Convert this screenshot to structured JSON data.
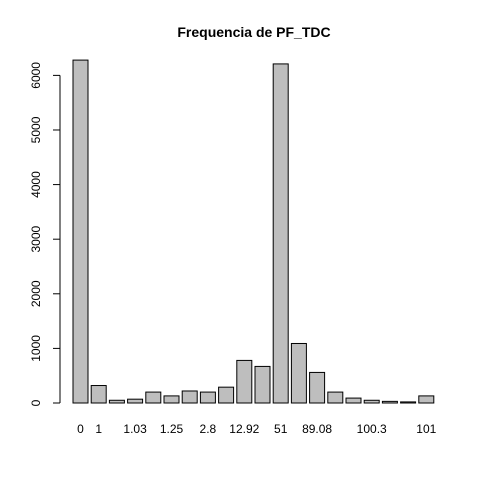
{
  "chart_data": {
    "type": "bar",
    "title": "Frequencia de PF_TDC",
    "xlabel": "",
    "ylabel": "",
    "ylim": [
      0,
      6300
    ],
    "yticks": [
      0,
      1000,
      2000,
      3000,
      4000,
      5000,
      6000
    ],
    "categories": [
      "0",
      "1",
      "",
      "1.03",
      "",
      "1.25",
      "",
      "2.8",
      "",
      "12.92",
      "",
      "51",
      "",
      "89.08",
      "",
      "",
      "100.3",
      "",
      "",
      "101"
    ],
    "values": [
      6280,
      320,
      50,
      70,
      200,
      130,
      220,
      200,
      290,
      780,
      670,
      6210,
      1090,
      560,
      200,
      90,
      50,
      30,
      20,
      130
    ],
    "bar_fill": "#bebebe",
    "bar_stroke": "#000000",
    "grid": false,
    "legend": "none"
  }
}
